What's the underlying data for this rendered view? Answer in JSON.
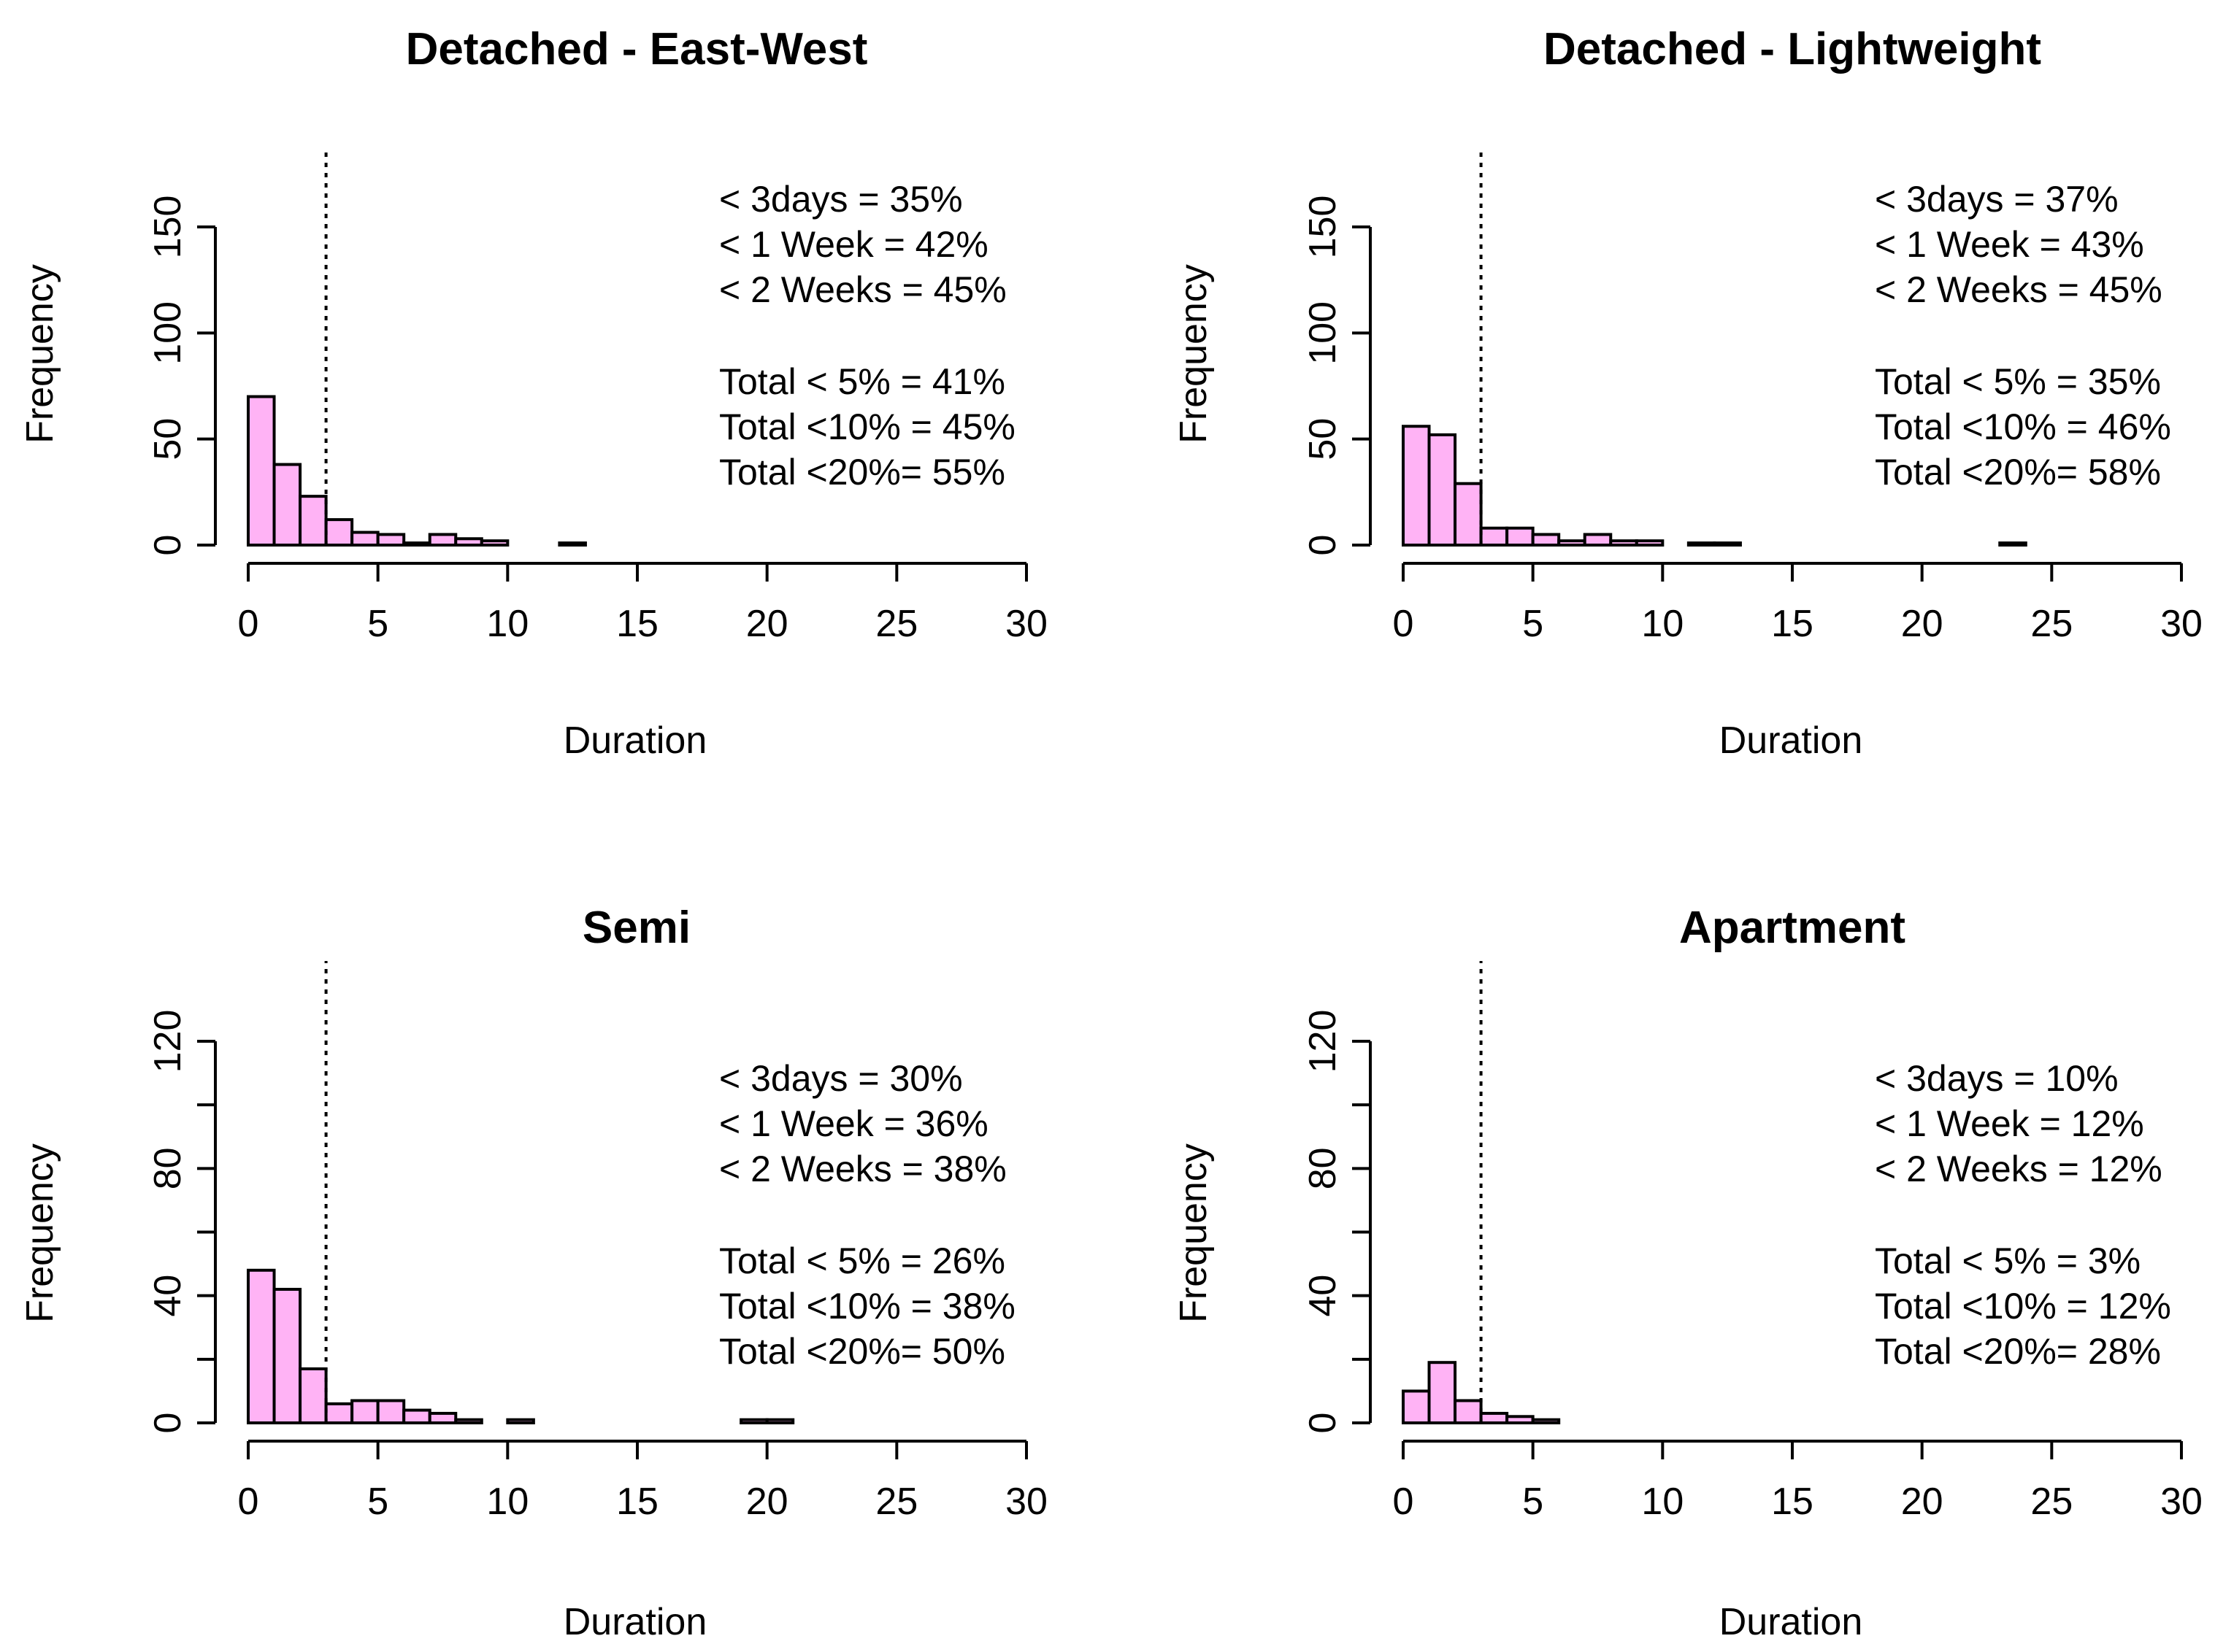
{
  "chart_data": [
    {
      "type": "histogram",
      "title": "Detached - East-West",
      "xlabel": "Duration",
      "ylabel": "Frequency",
      "xlim": [
        0,
        30
      ],
      "ylim": [
        0,
        150
      ],
      "x_ticks": [
        "0",
        "5",
        "10",
        "15",
        "20",
        "25",
        "30"
      ],
      "y_ticks": [
        "0",
        "50",
        "100",
        "150"
      ],
      "vline": 3,
      "bins": [
        0,
        1,
        2,
        3,
        4,
        5,
        6,
        7,
        8,
        9,
        10,
        11,
        12,
        13,
        14,
        15,
        16,
        17,
        18,
        19,
        20,
        21,
        22,
        23,
        24,
        25,
        26,
        27,
        28,
        29,
        30
      ],
      "counts": [
        70,
        38,
        23,
        12,
        6,
        5,
        1,
        5,
        3,
        2,
        0,
        0,
        1,
        0,
        0,
        0,
        0,
        0,
        0,
        0,
        0,
        0,
        0,
        0,
        0,
        0,
        0,
        0,
        0,
        0
      ],
      "bar_color": "#ffb3f5",
      "annotations": {
        "days3": "< 3days = 35%",
        "week1": "< 1 Week = 42%",
        "weeks2": "< 2 Weeks = 45%",
        "total5": "Total < 5% = 41%",
        "total10": "Total <10% = 45%",
        "total20": "Total <20%= 55%"
      }
    },
    {
      "type": "histogram",
      "title": "Detached - Lightweight",
      "xlabel": "Duration",
      "ylabel": "Frequency",
      "xlim": [
        0,
        30
      ],
      "ylim": [
        0,
        150
      ],
      "x_ticks": [
        "0",
        "5",
        "10",
        "15",
        "20",
        "25",
        "30"
      ],
      "y_ticks": [
        "0",
        "50",
        "100",
        "150"
      ],
      "vline": 3,
      "bins": [
        0,
        1,
        2,
        3,
        4,
        5,
        6,
        7,
        8,
        9,
        10,
        11,
        12,
        13,
        14,
        15,
        16,
        17,
        18,
        19,
        20,
        21,
        22,
        23,
        24,
        25,
        26,
        27,
        28,
        29,
        30
      ],
      "counts": [
        56,
        52,
        29,
        8,
        8,
        5,
        2,
        5,
        2,
        2,
        0,
        1,
        1,
        0,
        0,
        0,
        0,
        0,
        0,
        0,
        0,
        0,
        0,
        1,
        0,
        0,
        0,
        0,
        0,
        0
      ],
      "bar_color": "#ffb3f5",
      "annotations": {
        "days3": "< 3days = 37%",
        "week1": "< 1 Week = 43%",
        "weeks2": "< 2 Weeks = 45%",
        "total5": "Total < 5% = 35%",
        "total10": "Total <10% = 46%",
        "total20": "Total <20%= 58%"
      }
    },
    {
      "type": "histogram",
      "title": "Semi",
      "xlabel": "Duration",
      "ylabel": "Frequency",
      "xlim": [
        0,
        30
      ],
      "ylim": [
        0,
        120
      ],
      "x_ticks": [
        "0",
        "5",
        "10",
        "15",
        "20",
        "25",
        "30"
      ],
      "y_ticks": [
        "0",
        "40",
        "80",
        "120"
      ],
      "y_minor_ticks": [
        20,
        60,
        100
      ],
      "vline": 3,
      "bins": [
        0,
        1,
        2,
        3,
        4,
        5,
        6,
        7,
        8,
        9,
        10,
        11,
        12,
        13,
        14,
        15,
        16,
        17,
        18,
        19,
        20,
        21,
        22,
        23,
        24,
        25,
        26,
        27,
        28,
        29,
        30
      ],
      "counts": [
        48,
        42,
        17,
        6,
        7,
        7,
        4,
        3,
        1,
        0,
        1,
        0,
        0,
        0,
        0,
        0,
        0,
        0,
        0,
        1,
        1,
        0,
        0,
        0,
        0,
        0,
        0,
        0,
        0,
        0
      ],
      "bar_color": "#ffb3f5",
      "annotations": {
        "days3": "< 3days = 30%",
        "week1": "< 1 Week = 36%",
        "weeks2": "< 2 Weeks = 38%",
        "total5": "Total < 5% = 26%",
        "total10": "Total <10% = 38%",
        "total20": "Total <20%= 50%"
      }
    },
    {
      "type": "histogram",
      "title": "Apartment",
      "xlabel": "Duration",
      "ylabel": "Frequency",
      "xlim": [
        0,
        30
      ],
      "ylim": [
        0,
        120
      ],
      "x_ticks": [
        "0",
        "5",
        "10",
        "15",
        "20",
        "25",
        "30"
      ],
      "y_ticks": [
        "0",
        "40",
        "80",
        "120"
      ],
      "y_minor_ticks": [
        20,
        60,
        100
      ],
      "vline": 3,
      "bins": [
        0,
        1,
        2,
        3,
        4,
        5,
        6
      ],
      "counts": [
        10,
        19,
        7,
        3,
        2,
        1
      ],
      "bar_color": "#ffb3f5",
      "annotations": {
        "days3": "< 3days = 10%",
        "week1": "< 1 Week = 12%",
        "weeks2": "< 2 Weeks = 12%",
        "total5": "Total < 5% = 3%",
        "total10": "Total <10% = 12%",
        "total20": "Total <20%= 28%"
      }
    }
  ]
}
